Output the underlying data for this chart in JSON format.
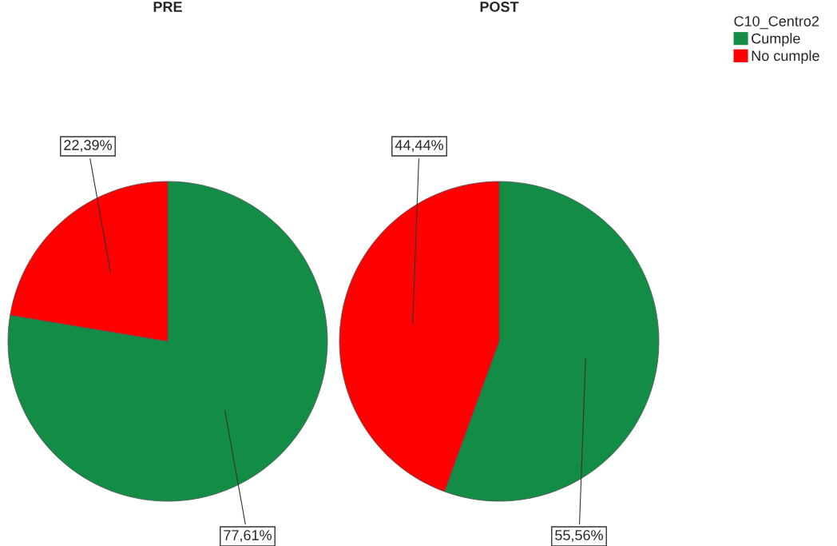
{
  "chart_data": [
    {
      "type": "pie",
      "title": "PRE",
      "categories": [
        "Cumple",
        "No cumple"
      ],
      "values": [
        77.61,
        22.39
      ],
      "colors": [
        "#138d46",
        "#ff0000"
      ],
      "value_labels": [
        "77,61%",
        "22,39%"
      ],
      "legend": "top right",
      "legend_title": "C10_Centro2"
    },
    {
      "type": "pie",
      "title": "POST",
      "categories": [
        null,
        null
      ],
      "values": [
        55.56,
        44.44
      ],
      "colors": [
        "#138d46",
        "#ff0000"
      ],
      "value_labels": [
        "55,56%",
        "44,44%"
      ]
    }
  ]
}
